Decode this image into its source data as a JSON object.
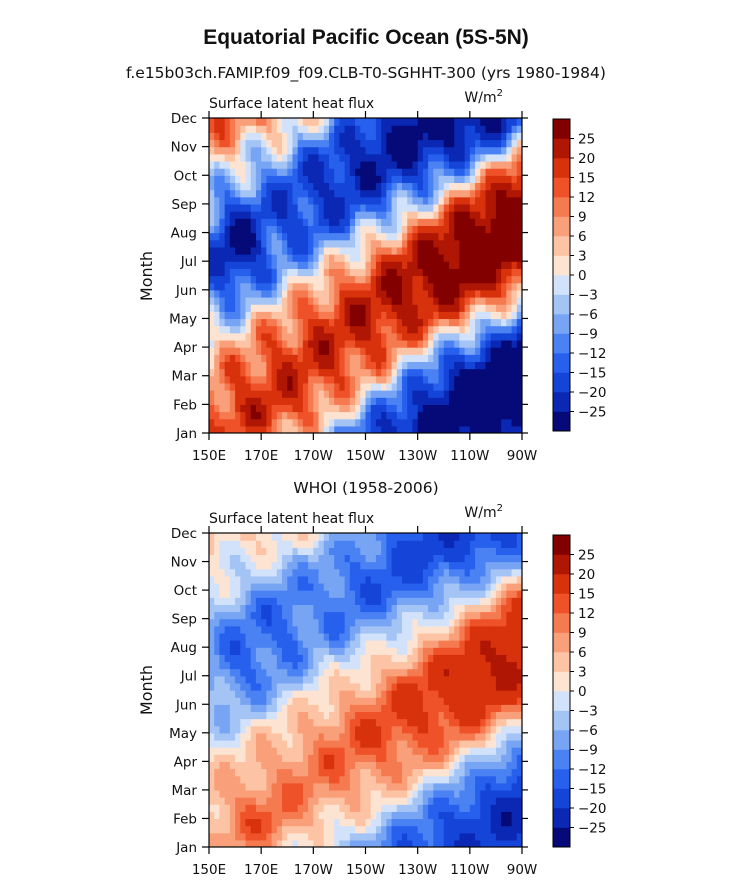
{
  "figure": {
    "title": "Equatorial Pacific Ocean (5S-5N)",
    "subtitle": "f.e15b03ch.FAMIP.f09_f09.CLB-T0-SGHHT-300 (yrs 1980-1984)"
  },
  "chart_data": [
    {
      "type": "heatmap",
      "panel_title": "",
      "left_label": "Surface latent heat flux",
      "units": "W/m",
      "units_superscript": "2",
      "ylabel": "Month",
      "x_tick_labels": [
        "150E",
        "170E",
        "170W",
        "150W",
        "130W",
        "110W",
        "90W"
      ],
      "x_ticks_deg_east": [
        150,
        170,
        190,
        210,
        230,
        250,
        270
      ],
      "xlim_deg_east": [
        150,
        270
      ],
      "y_tick_labels": [
        "Jan",
        "Feb",
        "Mar",
        "Apr",
        "May",
        "Jun",
        "Jul",
        "Aug",
        "Sep",
        "Oct",
        "Nov",
        "Dec"
      ],
      "ylim_month": [
        1,
        12
      ],
      "field_structure": {
        "description": "westward-propagating annual cycle anomaly",
        "negative_core_center": [
          228,
          3.8
        ],
        "positive_core_center": [
          235,
          8.8
        ],
        "min_value": -25,
        "max_value": 25
      }
    },
    {
      "type": "heatmap",
      "panel_title": "WHOI (1958-2006)",
      "left_label": "Surface latent heat flux",
      "units": "W/m",
      "units_superscript": "2",
      "ylabel": "Month",
      "x_tick_labels": [
        "150E",
        "170E",
        "170W",
        "150W",
        "130W",
        "110W",
        "90W"
      ],
      "x_ticks_deg_east": [
        150,
        170,
        190,
        210,
        230,
        250,
        270
      ],
      "xlim_deg_east": [
        150,
        270
      ],
      "y_tick_labels": [
        "Jan",
        "Feb",
        "Mar",
        "Apr",
        "May",
        "Jun",
        "Jul",
        "Aug",
        "Sep",
        "Oct",
        "Nov",
        "Dec"
      ],
      "ylim_month": [
        1,
        12
      ],
      "field_structure": {
        "description": "weaker westward-propagating annual cycle anomaly",
        "negative_core_center": [
          245,
          2.0
        ],
        "positive_core_center": [
          240,
          8.5
        ],
        "min_value": -25,
        "max_value": 25
      }
    }
  ],
  "colorbar": {
    "labels": [
      "25",
      "20",
      "15",
      "12",
      "9",
      "6",
      "3",
      "0",
      "−3",
      "−6",
      "−9",
      "−12",
      "−15",
      "−20",
      "−25"
    ],
    "levels": [
      -25,
      -20,
      -15,
      -12,
      -9,
      -6,
      -3,
      0,
      3,
      6,
      9,
      12,
      15,
      20,
      25
    ],
    "colors": [
      "#050a78",
      "#0a28b4",
      "#1444d8",
      "#2860ee",
      "#4a82f4",
      "#78a4f4",
      "#a4c4f6",
      "#d2e2fa",
      "#fde4d2",
      "#fcc4a4",
      "#f9a07a",
      "#f57a50",
      "#ef5228",
      "#d8320c",
      "#b01604",
      "#820000"
    ]
  }
}
